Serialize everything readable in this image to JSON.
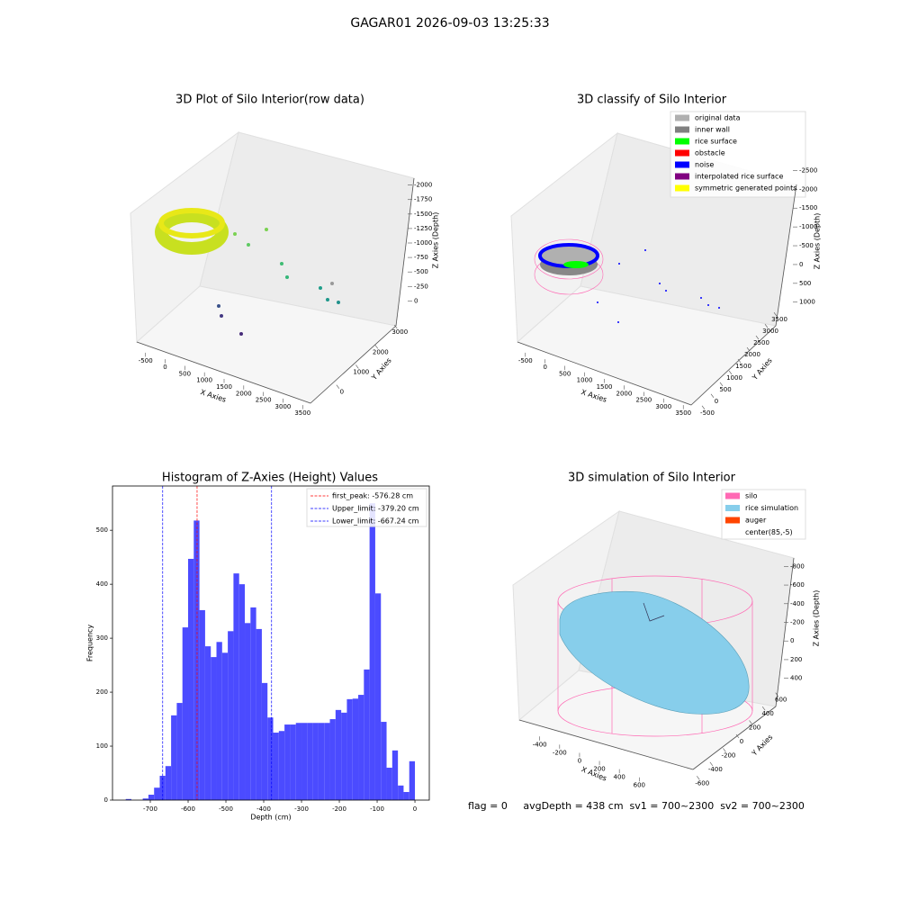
{
  "title": "GAGAR01 2026-09-03 13:25:33",
  "annotation": "flag = 0     avgDepth = 438 cm  sv1 = 700~2300  sv2 = 700~2300",
  "chart_data": [
    {
      "type": "scatter3d",
      "title": "3D Plot of Silo Interior(row data)",
      "xlabel": "X Axies",
      "ylabel": "Y Axies",
      "zlabel": "Z Axies (Depth)",
      "xlim": [
        -700,
        3700
      ],
      "xticks": [
        -500,
        0,
        500,
        1000,
        1500,
        2000,
        2500,
        3000,
        3500
      ],
      "ylim": [
        -600,
        3500
      ],
      "yticks": [
        0,
        1000,
        2000,
        3000
      ],
      "zlim": [
        -2150,
        150
      ],
      "zticks": [
        0,
        -250,
        -500,
        -750,
        -1000,
        -1250,
        -1500,
        -1750,
        -2000
      ]
    },
    {
      "type": "scatter3d",
      "title": "3D classify of Silo Interior",
      "xlabel": "X Axies",
      "ylabel": "Y Axies",
      "zlabel": "Z Axies (Depth)",
      "xlim": [
        -700,
        3700
      ],
      "xticks": [
        -500,
        0,
        500,
        1000,
        1500,
        2000,
        2500,
        3000,
        3500
      ],
      "ylim": [
        -700,
        3700
      ],
      "yticks": [
        -500,
        0,
        500,
        1000,
        1500,
        2000,
        2500,
        3000,
        3500
      ],
      "zlim": [
        -2750,
        1150
      ],
      "zticks": [
        -2500,
        -2000,
        -1500,
        -1000,
        -500,
        0,
        500,
        1000
      ],
      "legend": [
        {
          "name": "original data",
          "color": "#b0b0b0"
        },
        {
          "name": "inner wall",
          "color": "#808080"
        },
        {
          "name": "rice surface",
          "color": "#00ff00"
        },
        {
          "name": "obstacle",
          "color": "#ff0000"
        },
        {
          "name": "noise",
          "color": "#0000ff"
        },
        {
          "name": "interpolated rice surface",
          "color": "#800080"
        },
        {
          "name": "symmetric generated points",
          "color": "#ffff00"
        }
      ]
    },
    {
      "type": "histogram",
      "title": "Histogram of Z-Axies (Height) Values",
      "xlabel": "Depth (cm)",
      "ylabel": "Frequency",
      "color": "#4b4bff",
      "bins": [
        -765,
        -750,
        -735,
        -720,
        -705,
        -690,
        -675,
        -660,
        -645,
        -630,
        -615,
        -600,
        -585,
        -570,
        -555,
        -540,
        -525,
        -510,
        -495,
        -480,
        -465,
        -450,
        -435,
        -420,
        -405,
        -390,
        -375,
        -360,
        -345,
        -330,
        -315,
        -300,
        -285,
        -270,
        -255,
        -240,
        -225,
        -210,
        -195,
        -180,
        -165,
        -150,
        -135,
        -120,
        -105,
        -90,
        -75,
        -60,
        -45,
        -30,
        -15,
        0
      ],
      "counts": [
        2,
        0,
        0,
        3,
        10,
        23,
        45,
        63,
        157,
        180,
        320,
        447,
        518,
        352,
        285,
        265,
        293,
        273,
        313,
        420,
        400,
        328,
        357,
        317,
        217,
        153,
        125,
        128,
        140,
        140,
        143,
        143,
        143,
        143,
        143,
        143,
        150,
        167,
        162,
        187,
        188,
        195,
        242,
        550,
        383,
        145,
        60,
        92,
        27,
        15,
        72
      ],
      "xlim": [
        -800,
        38
      ],
      "xticks": [
        -700,
        -600,
        -500,
        -400,
        -300,
        -200,
        -100,
        0
      ],
      "ylim": [
        0,
        582
      ],
      "yticks": [
        0,
        100,
        200,
        300,
        400,
        500
      ],
      "lines": [
        {
          "label": "first_peak: -576.28 cm",
          "value": -576.28,
          "color": "#ff0000"
        },
        {
          "label": "Upper_limit: -379.20 cm",
          "value": -379.2,
          "color": "#0000ff"
        },
        {
          "label": "Lower_limit: -667.24 cm",
          "value": -667.24,
          "color": "#0000ff"
        }
      ]
    },
    {
      "type": "surface3d",
      "title": "3D simulation of Silo Interior",
      "xlabel": "X Axies",
      "ylabel": "Y Axies",
      "zlabel": "Z Axies (Depth)",
      "xlim": [
        -560,
        760
      ],
      "xticks": [
        -400,
        -200,
        0,
        200,
        400,
        600
      ],
      "ylim": [
        -700,
        700
      ],
      "yticks": [
        -600,
        -400,
        -200,
        0,
        200,
        400,
        600
      ],
      "zlim": [
        -900,
        500
      ],
      "zticks": [
        -800,
        -600,
        -400,
        -200,
        0,
        200,
        400
      ],
      "legend": [
        {
          "name": "silo",
          "color": "#ff69b4"
        },
        {
          "name": "rice simulation",
          "color": "#87ceeb"
        },
        {
          "name": "auger",
          "color": "#ff4500"
        },
        {
          "name": "center(85,-5)",
          "color": "#ffffff"
        }
      ]
    }
  ]
}
